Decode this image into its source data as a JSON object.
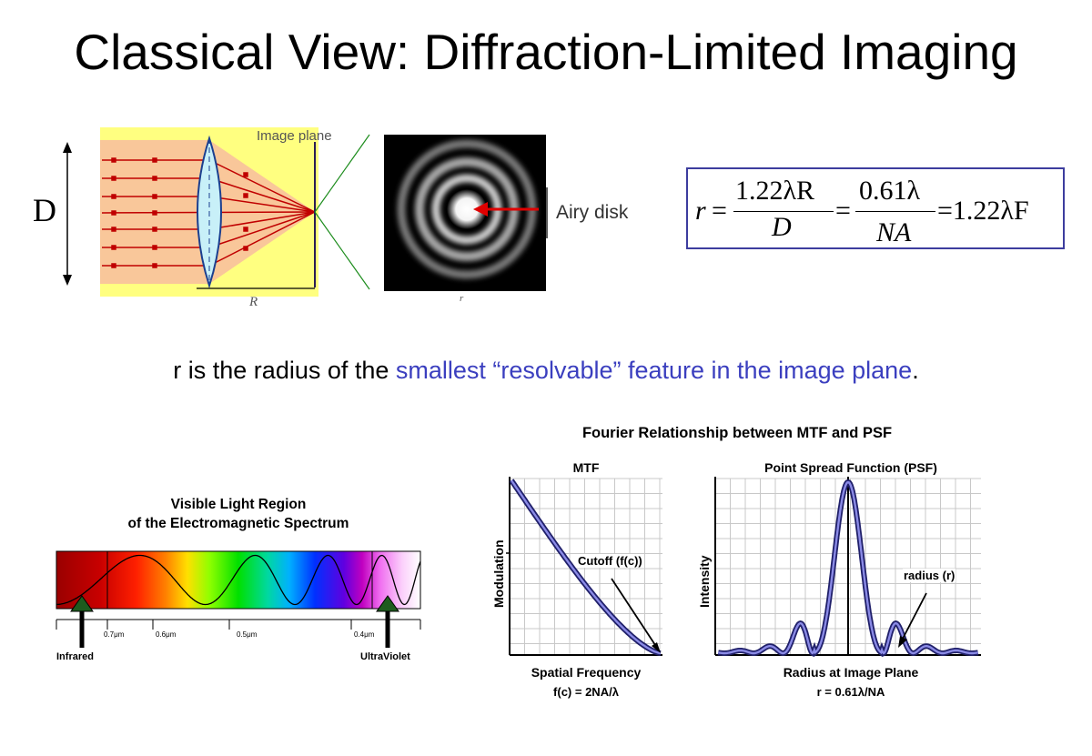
{
  "slide": {
    "title": "Classical View: Diffraction-Limited Imaging"
  },
  "optics": {
    "d_label": "D",
    "image_plane_label": "Image plane",
    "r_axis_label": "R",
    "airy_label": "Airy disk",
    "airy_r_label": "r",
    "colors": {
      "beam": "#f9c79a",
      "band": "#ffff80",
      "lens": "#c8f0f8",
      "ray": "#c00000",
      "arrow": "#e00000",
      "cone": "#1c8c1c"
    }
  },
  "formula": {
    "r_var": "r",
    "eq1": "=",
    "num1": "1.22λR",
    "den1": "D",
    "eq2": "=",
    "num2": "0.61λ",
    "den2": "NA",
    "tail": "=1.22λF",
    "border_color": "#3d3d9e"
  },
  "caption": {
    "before": "r is the radius of the ",
    "highlight": "smallest “resolvable” feature in the image plane",
    "after": ".",
    "highlight_color": "#3b3fbf"
  },
  "spectrum": {
    "title_line1": "Visible Light Region",
    "title_line2": "of the Electromagnetic Spectrum",
    "ticks": [
      "0.7μm",
      "0.6μm",
      "0.5μm",
      "0.4μm"
    ],
    "left_label": "Infrared",
    "right_label": "UltraViolet"
  },
  "fourier": {
    "title": "Fourier Relationship between MTF and PSF",
    "mtf": {
      "title": "MTF",
      "ylabel": "Modulation",
      "xlabel": "Spatial Frequency",
      "formula": "f(c) = 2NA/λ",
      "annotation": "Cutoff (f(c))"
    },
    "psf": {
      "title": "Point Spread Function (PSF)",
      "ylabel": "Intensity",
      "xlabel": "Radius at Image Plane",
      "formula": "r = 0.61λ/NA",
      "annotation": "radius (r)"
    },
    "curve_color": "#3c3ca8"
  }
}
